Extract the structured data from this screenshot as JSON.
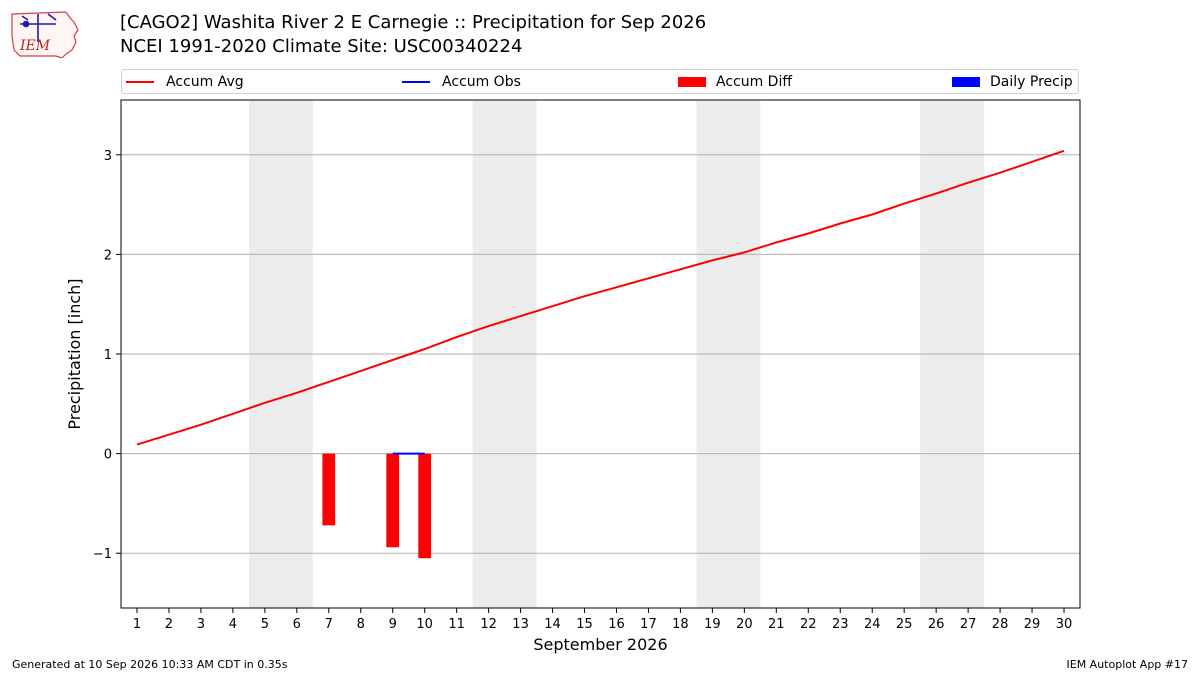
{
  "header": {
    "title_line1": "[CAGO2] Washita River 2 E Carnegie :: Precipitation for Sep 2026",
    "title_line2": "NCEI 1991-2020 Climate Site: USC00340224",
    "logo_text": "IEM"
  },
  "legend": {
    "placement": "top",
    "items": [
      {
        "label": "Accum Avg",
        "kind": "line",
        "color": "#ff0000"
      },
      {
        "label": "Accum Obs",
        "kind": "line",
        "color": "#0000ff"
      },
      {
        "label": "Accum Diff",
        "kind": "bar",
        "color": "#ff0000"
      },
      {
        "label": "Daily Precip",
        "kind": "bar",
        "color": "#0000ff"
      }
    ]
  },
  "footer": {
    "left": "Generated at 10 Sep 2026 10:33 AM CDT in 0.35s",
    "right": "IEM Autoplot App #17"
  },
  "chart_data": {
    "type": "line",
    "title": "[CAGO2] Washita River 2 E Carnegie :: Precipitation for Sep 2026",
    "subtitle": "NCEI 1991-2020 Climate Site: USC00340224",
    "xlabel": "September 2026",
    "ylabel": "Precipitation [inch]",
    "xlim": [
      0.5,
      30.5
    ],
    "ylim": [
      -1.55,
      3.55
    ],
    "x_ticks": [
      1,
      2,
      3,
      4,
      5,
      6,
      7,
      8,
      9,
      10,
      11,
      12,
      13,
      14,
      15,
      16,
      17,
      18,
      19,
      20,
      21,
      22,
      23,
      24,
      25,
      26,
      27,
      28,
      29,
      30
    ],
    "y_ticks": [
      -1,
      0,
      1,
      2,
      3
    ],
    "y_tick_labels": [
      "−1",
      "0",
      "1",
      "2",
      "3"
    ],
    "grid": "y",
    "weekend_shading": [
      [
        4.5,
        6.5
      ],
      [
        11.5,
        13.5
      ],
      [
        18.5,
        20.5
      ],
      [
        25.5,
        27.5
      ]
    ],
    "shade_color": "#ececec",
    "series": [
      {
        "name": "Accum Avg",
        "kind": "line",
        "color": "#ff0000",
        "x": [
          1,
          2,
          3,
          4,
          5,
          6,
          7,
          8,
          9,
          10,
          11,
          12,
          13,
          14,
          15,
          16,
          17,
          18,
          19,
          20,
          21,
          22,
          23,
          24,
          25,
          26,
          27,
          28,
          29,
          30
        ],
        "values": [
          0.09,
          0.19,
          0.29,
          0.4,
          0.51,
          0.61,
          0.72,
          0.83,
          0.94,
          1.05,
          1.17,
          1.28,
          1.38,
          1.48,
          1.58,
          1.67,
          1.76,
          1.85,
          1.94,
          2.02,
          2.12,
          2.21,
          2.31,
          2.4,
          2.51,
          2.61,
          2.72,
          2.82,
          2.93,
          3.04
        ]
      },
      {
        "name": "Accum Obs",
        "kind": "line",
        "color": "#0000ff",
        "x": [
          9,
          10
        ],
        "values": [
          0.0,
          0.0
        ]
      },
      {
        "name": "Accum Diff",
        "kind": "bar",
        "color": "#ff0000",
        "x": [
          7,
          9,
          10
        ],
        "values": [
          -0.72,
          -0.94,
          -1.05
        ]
      },
      {
        "name": "Daily Precip",
        "kind": "bar",
        "color": "#0000ff",
        "x": [],
        "values": []
      }
    ]
  }
}
